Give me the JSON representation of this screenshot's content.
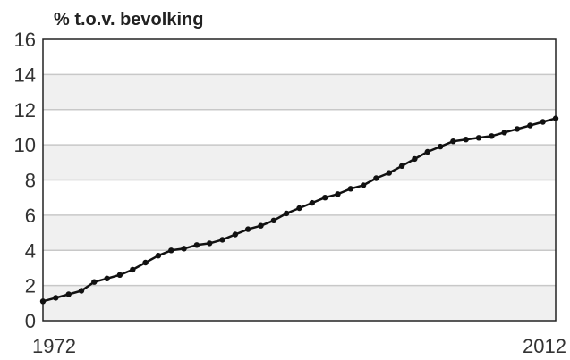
{
  "chart_data": {
    "type": "line",
    "title": "",
    "xlabel": "",
    "ylabel": "% t.o.v. bevolking",
    "x": [
      1972,
      1973,
      1974,
      1975,
      1976,
      1977,
      1978,
      1979,
      1980,
      1981,
      1982,
      1983,
      1984,
      1985,
      1986,
      1987,
      1988,
      1989,
      1990,
      1991,
      1992,
      1993,
      1994,
      1995,
      1996,
      1997,
      1998,
      1999,
      2000,
      2001,
      2002,
      2003,
      2004,
      2005,
      2006,
      2007,
      2008,
      2009,
      2010,
      2011,
      2012
    ],
    "series": [
      {
        "name": "",
        "values": [
          1.1,
          1.3,
          1.5,
          1.7,
          2.2,
          2.4,
          2.6,
          2.9,
          3.3,
          3.7,
          4.0,
          4.1,
          4.3,
          4.4,
          4.6,
          4.9,
          5.2,
          5.4,
          5.7,
          6.1,
          6.4,
          6.7,
          7.0,
          7.2,
          7.5,
          7.7,
          8.1,
          8.4,
          8.8,
          9.2,
          9.6,
          9.9,
          10.2,
          10.3,
          10.4,
          10.5,
          10.7,
          10.9,
          11.1,
          11.3,
          11.5
        ]
      }
    ],
    "xlim": [
      1972,
      2012
    ],
    "ylim": [
      0,
      16
    ],
    "yticks": [
      "0",
      "2",
      "4",
      "6",
      "8",
      "10",
      "12",
      "14",
      "16"
    ],
    "xtick_labels": [
      "1972",
      "2012"
    ],
    "grid": true,
    "colors": {
      "line": "#111111",
      "plot_background": "#f0f0f0",
      "band_background": "#ffffff",
      "gridline": "#c8c8c8",
      "axis": "#222222"
    }
  }
}
